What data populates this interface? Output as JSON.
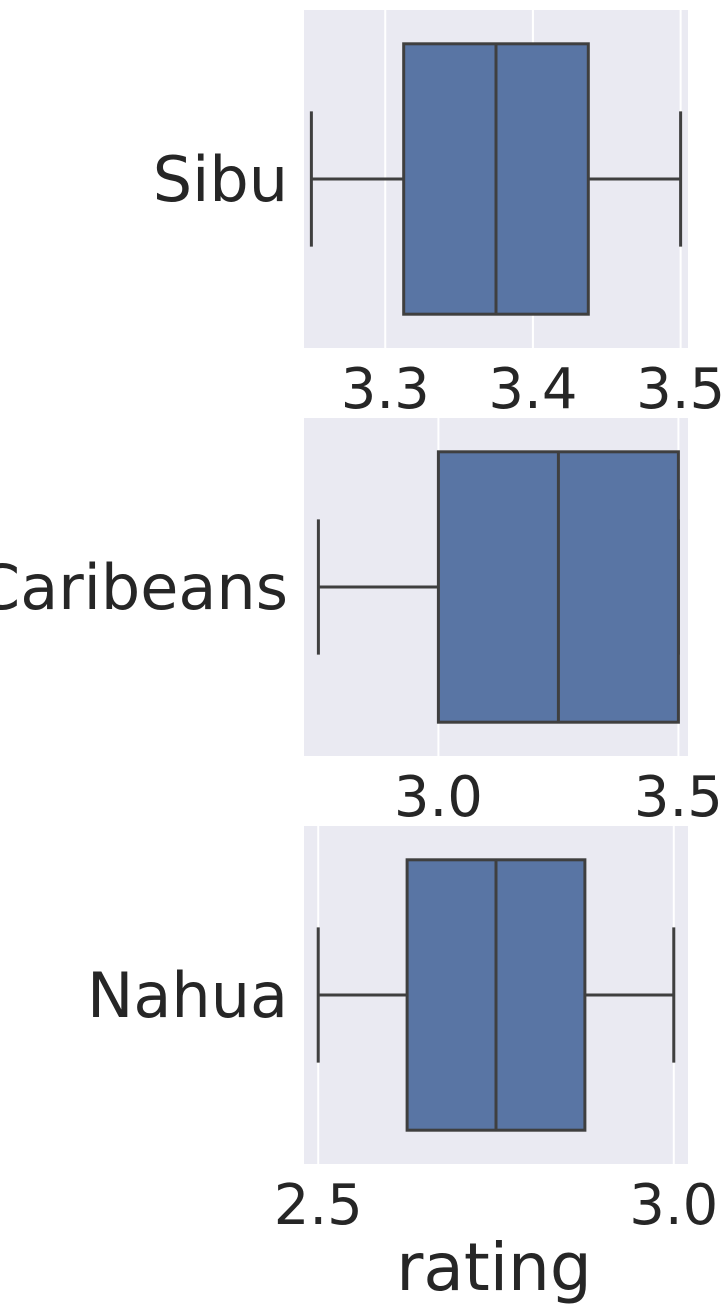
{
  "chart_data": [
    {
      "type": "box",
      "category": "Sibu",
      "xlim": [
        3.245,
        3.505
      ],
      "xticks": [
        3.3,
        3.4,
        3.5
      ],
      "xtick_labels": [
        "3.3",
        "3.4",
        "3.5"
      ],
      "whisker_low": 3.25,
      "q1": 3.3125,
      "median": 3.375,
      "q3": 3.4375,
      "whisker_high": 3.5,
      "xlabel": ""
    },
    {
      "type": "box",
      "category": "Caribeans",
      "xlim": [
        2.72,
        3.52
      ],
      "xticks": [
        3.0,
        3.5
      ],
      "xtick_labels": [
        "3.0",
        "3.5"
      ],
      "whisker_low": 2.75,
      "q1": 3.0,
      "median": 3.25,
      "q3": 3.5,
      "whisker_high": 3.5,
      "xlabel": ""
    },
    {
      "type": "box",
      "category": "Nahua",
      "xlim": [
        2.48,
        3.02
      ],
      "xticks": [
        2.5,
        3.0
      ],
      "xtick_labels": [
        "2.5",
        "3.0"
      ],
      "whisker_low": 2.5,
      "q1": 2.625,
      "median": 2.75,
      "q3": 2.875,
      "whisker_high": 3.0,
      "xlabel": "rating"
    }
  ],
  "colors": {
    "plot_background": "#eaeaf2",
    "grid": "#ffffff",
    "box_fill": "#5975a4",
    "box_edge": "#3f3f3f",
    "text": "#262626"
  }
}
